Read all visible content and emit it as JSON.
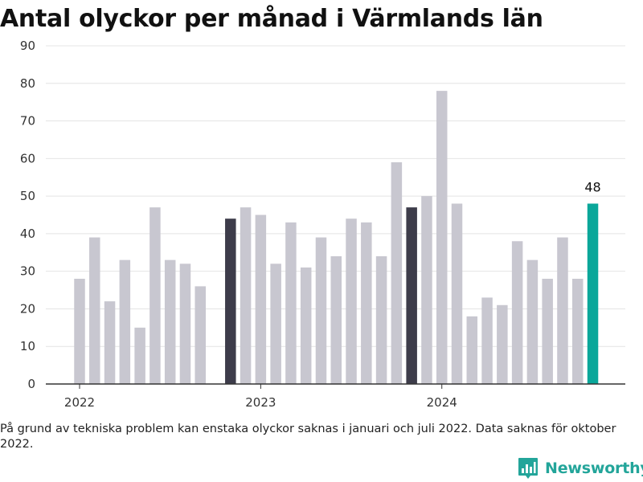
{
  "chart_data": {
    "type": "bar",
    "title": "Antal olyckor per månad i Värmlands län",
    "xlabel": "",
    "ylabel": "",
    "ylim": [
      0,
      90
    ],
    "yticks": [
      0,
      10,
      20,
      30,
      40,
      50,
      60,
      70,
      80,
      90
    ],
    "x_tick_labels": [
      {
        "label": "2022",
        "month_index": 0
      },
      {
        "label": "2023",
        "month_index": 12
      },
      {
        "label": "2024",
        "month_index": 24
      }
    ],
    "categories": [
      "2022-01",
      "2022-02",
      "2022-03",
      "2022-04",
      "2022-05",
      "2022-06",
      "2022-07",
      "2022-08",
      "2022-09",
      "2022-10",
      "2022-11",
      "2022-12",
      "2023-01",
      "2023-02",
      "2023-03",
      "2023-04",
      "2023-05",
      "2023-06",
      "2023-07",
      "2023-08",
      "2023-09",
      "2023-10",
      "2023-11",
      "2023-12",
      "2024-01",
      "2024-02",
      "2024-03",
      "2024-04",
      "2024-05",
      "2024-06",
      "2024-07",
      "2024-08",
      "2024-09",
      "2024-10",
      "2024-11"
    ],
    "values": [
      28,
      39,
      22,
      33,
      15,
      47,
      33,
      32,
      26,
      null,
      44,
      47,
      45,
      32,
      43,
      31,
      39,
      34,
      44,
      43,
      34,
      59,
      47,
      50,
      78,
      48,
      18,
      23,
      21,
      38,
      33,
      28,
      39,
      28,
      48
    ],
    "highlight_months": [
      "2022-11",
      "2023-11"
    ],
    "latest_month": "2024-11",
    "value_labels": [
      {
        "category": "2024-11",
        "text": "48"
      }
    ],
    "grid": true,
    "legend": "none",
    "colors": {
      "default_bar": "#c8c7d0",
      "highlight_bar": "#3d3c4a",
      "latest_bar": "#0aa79a",
      "gridline": "#e4e4e4",
      "axis": "#333333"
    }
  },
  "footnote": "På grund av tekniska problem kan enstaka olyckor saknas i januari och juli 2022. Data saknas för oktober 2022.",
  "brand": {
    "name": "Newsworthy",
    "logo_icon": "bar-chart-badge-icon",
    "color": "#23a59a"
  }
}
